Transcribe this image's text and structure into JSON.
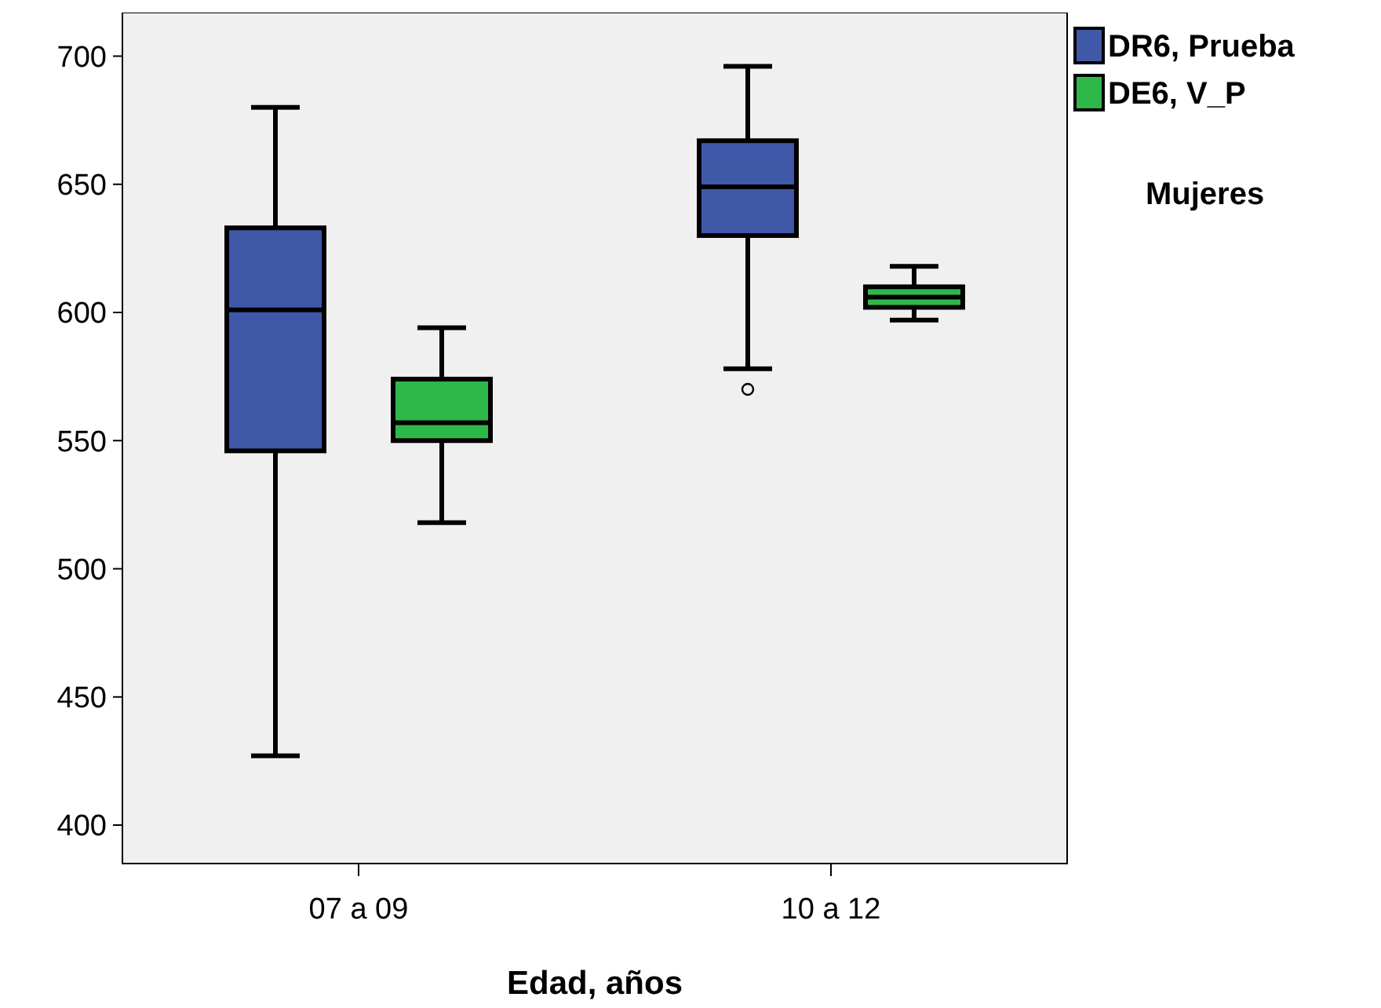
{
  "chart_data": {
    "type": "box",
    "xlabel": "Edad, años",
    "categories": [
      "07 a 09",
      "10 a 12"
    ],
    "ylim": [
      385,
      717
    ],
    "yticks": [
      400,
      450,
      500,
      550,
      600,
      650,
      700
    ],
    "grid": false,
    "legend": "top right",
    "annotations": [
      "Mujeres"
    ],
    "series": [
      {
        "name": "DR6, Prueba",
        "color": "#3f58a8",
        "boxes": [
          {
            "low": 427,
            "q1": 546,
            "median": 601,
            "q3": 633,
            "high": 680
          },
          {
            "low": 578,
            "q1": 630,
            "median": 649,
            "q3": 667,
            "high": 696,
            "outliers": [
              570
            ]
          }
        ]
      },
      {
        "name": "DE6, V_P",
        "color": "#2fb84a",
        "boxes": [
          {
            "low": 518,
            "q1": 550,
            "median": 557,
            "q3": 574,
            "high": 594
          },
          {
            "low": 597,
            "q1": 602,
            "median": 606,
            "q3": 610,
            "high": 618
          }
        ]
      }
    ]
  }
}
